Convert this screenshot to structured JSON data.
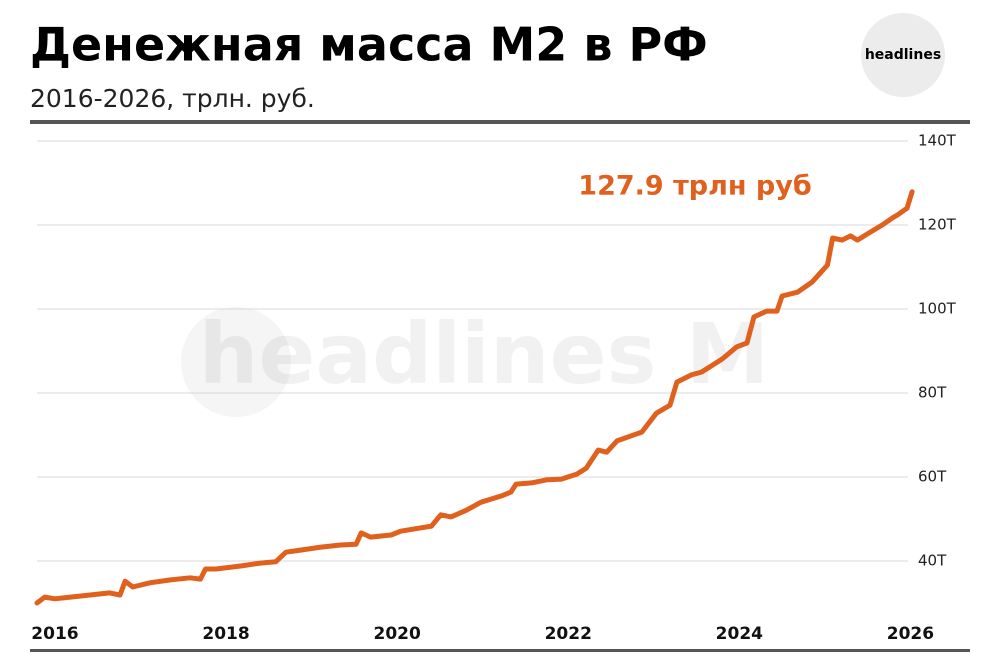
{
  "chart_data": {
    "type": "line",
    "title": "Денежная масса М2 в РФ",
    "subtitle": "2016-2026, трлн. руб.",
    "annotation": "127.9 трлн руб",
    "logo": "headlines",
    "watermark": "headlines M",
    "x": [
      2015.79,
      2015.88,
      2016.0,
      2016.18,
      2016.41,
      2016.64,
      2016.76,
      2016.82,
      2016.91,
      2017.11,
      2017.35,
      2017.58,
      2017.7,
      2017.76,
      2017.88,
      2018.17,
      2018.4,
      2018.58,
      2018.7,
      2018.87,
      2019.11,
      2019.34,
      2019.52,
      2019.58,
      2019.69,
      2019.93,
      2020.04,
      2020.28,
      2020.4,
      2020.51,
      2020.63,
      2020.81,
      2020.98,
      2021.22,
      2021.33,
      2021.39,
      2021.57,
      2021.74,
      2021.92,
      2022.1,
      2022.21,
      2022.35,
      2022.45,
      2022.57,
      2022.86,
      2023.03,
      2023.19,
      2023.27,
      2023.44,
      2023.56,
      2023.8,
      2023.97,
      2024.09,
      2024.17,
      2024.32,
      2024.44,
      2024.5,
      2024.68,
      2024.85,
      2025.03,
      2025.09,
      2025.2,
      2025.3,
      2025.38,
      2025.5,
      2025.67,
      2025.79,
      2025.85,
      2025.96,
      2026.02
    ],
    "series": [
      {
        "name": "M2",
        "color": "#e0601e",
        "values": [
          30.0,
          31.4,
          31.0,
          31.4,
          31.9,
          32.4,
          31.9,
          35.2,
          33.8,
          34.8,
          35.5,
          36.0,
          35.7,
          38.1,
          38.1,
          38.8,
          39.5,
          39.8,
          42.1,
          42.6,
          43.3,
          43.8,
          44.0,
          46.7,
          45.7,
          46.2,
          47.1,
          47.9,
          48.3,
          51.0,
          50.5,
          52.1,
          54.0,
          55.5,
          56.4,
          58.3,
          58.6,
          59.3,
          59.5,
          60.7,
          62.1,
          66.4,
          65.9,
          68.6,
          70.7,
          75.2,
          77.1,
          82.6,
          84.3,
          85.0,
          88.1,
          91.0,
          91.9,
          98.1,
          99.5,
          99.5,
          103.1,
          104.0,
          106.4,
          110.5,
          116.9,
          116.4,
          117.4,
          116.4,
          117.9,
          120.0,
          121.7,
          122.4,
          124.0,
          127.9
        ]
      }
    ],
    "xlim": [
      2015.79,
      2026.03
    ],
    "xticks": [
      2016,
      2018,
      2020,
      2022,
      2024,
      2026
    ],
    "ylim": [
      27,
      142
    ],
    "yticks": [
      {
        "value": 40,
        "label": "40T"
      },
      {
        "value": 60,
        "label": "60T"
      },
      {
        "value": 80,
        "label": "80T"
      },
      {
        "value": 100,
        "label": "100T"
      },
      {
        "value": 120,
        "label": "120T"
      },
      {
        "value": 140,
        "label": "140T"
      }
    ],
    "grid": true
  }
}
